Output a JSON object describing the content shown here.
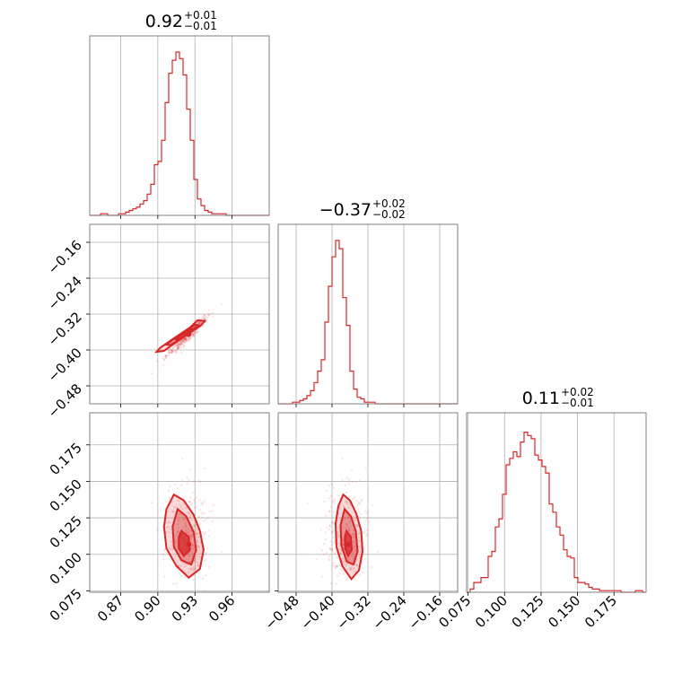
{
  "chart_data": {
    "type": "corner",
    "color": "#d62728",
    "parameters": [
      {
        "title": "0.92",
        "err_plus": "+0.01",
        "err_minus": "−0.01",
        "range": [
          0.845,
          0.99
        ],
        "ticks": [
          0.87,
          0.9,
          0.93,
          0.96
        ],
        "tick_labels": [
          "0.87",
          "0.90",
          "0.93",
          "0.96"
        ]
      },
      {
        "title": "−0.37",
        "err_plus": "+0.02",
        "err_minus": "−0.02",
        "range": [
          -0.52,
          -0.12
        ],
        "ticks": [
          -0.48,
          -0.4,
          -0.32,
          -0.24,
          -0.16
        ],
        "tick_labels": [
          "−0.48",
          "−0.40",
          "−0.32",
          "−0.24",
          "−0.16"
        ]
      },
      {
        "title": "0.11",
        "err_plus": "+0.02",
        "err_minus": "−0.01",
        "range": [
          0.074,
          0.197
        ],
        "ticks": [
          0.075,
          0.1,
          0.125,
          0.15,
          0.175
        ],
        "tick_labels": [
          "0.075",
          "0.100",
          "0.125",
          "0.150",
          "0.175"
        ]
      }
    ],
    "histograms": [
      {
        "param": 0,
        "edges_start": 0.845,
        "bin_width": 0.0029,
        "counts": [
          0,
          0,
          0,
          0.01,
          0.01,
          0,
          0,
          0,
          0.01,
          0.01,
          0.02,
          0.03,
          0.04,
          0.05,
          0.07,
          0.09,
          0.13,
          0.19,
          0.31,
          0.33,
          0.46,
          0.69,
          0.87,
          0.95,
          1.0,
          0.96,
          0.86,
          0.65,
          0.46,
          0.22,
          0.1,
          0.06,
          0.03,
          0.02,
          0.01,
          0.01,
          0.01,
          0.01,
          0,
          0,
          0,
          0,
          0,
          0,
          0,
          0,
          0,
          0,
          0,
          0
        ]
      },
      {
        "param": 1,
        "edges_start": -0.52,
        "bin_width": 0.008,
        "counts": [
          0,
          0,
          0,
          0,
          0.01,
          0.01,
          0.02,
          0.03,
          0.05,
          0.08,
          0.13,
          0.2,
          0.27,
          0.5,
          0.72,
          0.9,
          1.0,
          0.95,
          0.65,
          0.48,
          0.2,
          0.09,
          0.04,
          0.03,
          0.01,
          0.01,
          0.01,
          0,
          0,
          0,
          0,
          0,
          0,
          0,
          0,
          0,
          0,
          0,
          0,
          0,
          0,
          0,
          0,
          0,
          0,
          0,
          0,
          0,
          0,
          0
        ]
      },
      {
        "param": 2,
        "edges_start": 0.074,
        "bin_width": 0.00246,
        "counts": [
          0,
          0.02,
          0.06,
          0.06,
          0.09,
          0.09,
          0.22,
          0.25,
          0.4,
          0.45,
          0.6,
          0.78,
          0.82,
          0.86,
          0.83,
          0.92,
          0.98,
          0.96,
          0.94,
          0.84,
          0.81,
          0.77,
          0.73,
          0.54,
          0.49,
          0.4,
          0.35,
          0.26,
          0.22,
          0.21,
          0.09,
          0.06,
          0.06,
          0.05,
          0.03,
          0.02,
          0.02,
          0.01,
          0.01,
          0.01,
          0.01,
          0.01,
          0.01,
          0,
          0,
          0,
          0,
          0.01,
          0.01,
          0
        ]
      }
    ],
    "pairs": [
      {
        "x_param": 0,
        "y_param": 1,
        "center": [
          0.925,
          -0.365
        ],
        "levels": [
          {
            "level": 1,
            "points": [
              [
                0.932,
                -0.334
              ],
              [
                0.938,
                -0.335
              ],
              [
                0.935,
                -0.345
              ],
              [
                0.923,
                -0.367
              ],
              [
                0.912,
                -0.388
              ],
              [
                0.905,
                -0.402
              ],
              [
                0.899,
                -0.404
              ],
              [
                0.902,
                -0.395
              ],
              [
                0.913,
                -0.374
              ],
              [
                0.926,
                -0.35
              ]
            ]
          },
          {
            "level": 2,
            "points": [
              [
                0.93,
                -0.343
              ],
              [
                0.933,
                -0.345
              ],
              [
                0.926,
                -0.36
              ],
              [
                0.917,
                -0.378
              ],
              [
                0.91,
                -0.389
              ],
              [
                0.907,
                -0.388
              ],
              [
                0.914,
                -0.373
              ],
              [
                0.923,
                -0.356
              ]
            ]
          },
          {
            "level": 3,
            "points": [
              [
                0.927,
                -0.353
              ],
              [
                0.929,
                -0.355
              ],
              [
                0.922,
                -0.368
              ],
              [
                0.916,
                -0.378
              ],
              [
                0.914,
                -0.376
              ],
              [
                0.92,
                -0.364
              ]
            ]
          }
        ]
      },
      {
        "x_param": 0,
        "y_param": 2,
        "center": [
          0.925,
          0.107
        ],
        "levels": [
          {
            "level": 1,
            "points": [
              [
                0.913,
                0.141
              ],
              [
                0.921,
                0.137
              ],
              [
                0.929,
                0.127
              ],
              [
                0.934,
                0.116
              ],
              [
                0.937,
                0.103
              ],
              [
                0.934,
                0.09
              ],
              [
                0.925,
                0.084
              ],
              [
                0.915,
                0.092
              ],
              [
                0.907,
                0.104
              ],
              [
                0.905,
                0.119
              ],
              [
                0.907,
                0.131
              ]
            ]
          },
          {
            "level": 2,
            "points": [
              [
                0.916,
                0.131
              ],
              [
                0.923,
                0.126
              ],
              [
                0.929,
                0.115
              ],
              [
                0.931,
                0.103
              ],
              [
                0.927,
                0.093
              ],
              [
                0.919,
                0.096
              ],
              [
                0.913,
                0.105
              ],
              [
                0.912,
                0.119
              ]
            ]
          },
          {
            "level": 3,
            "points": [
              [
                0.919,
                0.116
              ],
              [
                0.925,
                0.112
              ],
              [
                0.926,
                0.103
              ],
              [
                0.921,
                0.099
              ],
              [
                0.917,
                0.104
              ],
              [
                0.917,
                0.112
              ]
            ]
          }
        ]
      },
      {
        "x_param": 1,
        "y_param": 2,
        "center": [
          -0.365,
          0.107
        ],
        "levels": [
          {
            "level": 1,
            "points": [
              [
                -0.375,
                0.141
              ],
              [
                -0.36,
                0.137
              ],
              [
                -0.346,
                0.128
              ],
              [
                -0.335,
                0.116
              ],
              [
                -0.332,
                0.102
              ],
              [
                -0.34,
                0.089
              ],
              [
                -0.357,
                0.083
              ],
              [
                -0.377,
                0.092
              ],
              [
                -0.39,
                0.105
              ],
              [
                -0.392,
                0.121
              ],
              [
                -0.386,
                0.133
              ]
            ]
          },
          {
            "level": 2,
            "points": [
              [
                -0.372,
                0.131
              ],
              [
                -0.358,
                0.126
              ],
              [
                -0.347,
                0.116
              ],
              [
                -0.343,
                0.102
              ],
              [
                -0.352,
                0.093
              ],
              [
                -0.367,
                0.095
              ],
              [
                -0.379,
                0.106
              ],
              [
                -0.381,
                0.12
              ]
            ]
          },
          {
            "level": 3,
            "points": [
              [
                -0.368,
                0.116
              ],
              [
                -0.358,
                0.112
              ],
              [
                -0.356,
                0.103
              ],
              [
                -0.364,
                0.099
              ],
              [
                -0.371,
                0.104
              ],
              [
                -0.371,
                0.112
              ]
            ]
          }
        ]
      }
    ],
    "scatter_note_free": true,
    "grid": true
  }
}
